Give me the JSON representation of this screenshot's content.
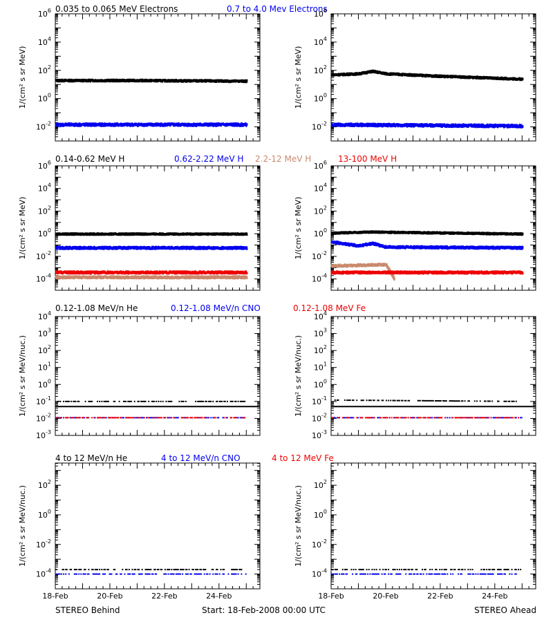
{
  "colors": {
    "black": "#000000",
    "blue": "#0000ee",
    "tan": "#c98a6e",
    "red": "#ee0000"
  },
  "row_titles": [
    [
      {
        "text": "0.035 to 0.065 MeV Electrons",
        "color": "black"
      },
      {
        "text": "0.7 to 4.0 Mev Electrons",
        "color": "blue"
      }
    ],
    [
      {
        "text": "0.14-0.62 MeV H",
        "color": "black"
      },
      {
        "text": "0.62-2.22 MeV H",
        "color": "blue"
      },
      {
        "text": "2.2-12 MeV H",
        "color": "tan"
      },
      {
        "text": "13-100 MeV H",
        "color": "red"
      }
    ],
    [
      {
        "text": "0.12-1.08 MeV/n He",
        "color": "black"
      },
      {
        "text": "0.12-1.08 MeV/n CNO",
        "color": "blue"
      },
      {
        "text": "0.12-1.08 MeV Fe",
        "color": "red"
      }
    ],
    [
      {
        "text": "4 to 12 MeV/n He",
        "color": "black"
      },
      {
        "text": "4 to 12 MeV/n CNO",
        "color": "blue"
      },
      {
        "text": "4 to 12 MeV Fe",
        "color": "red"
      }
    ]
  ],
  "x_tick_labels": [
    "18-Feb",
    "20-Feb",
    "22-Feb",
    "24-Feb"
  ],
  "footer": {
    "left": "STEREO Behind",
    "center": "Start: 18-Feb-2008 00:00 UTC",
    "right": "STEREO Ahead"
  },
  "chart_data": [
    {
      "type": "scatter",
      "row": 0,
      "side": "Behind",
      "log_y": true,
      "ylim_exp": [
        -3,
        6
      ],
      "ytick_exps": [
        -2,
        0,
        2,
        4,
        6
      ],
      "ylabel": "1/(cm² s sr MeV)",
      "xlim": [
        0,
        7.5
      ],
      "series": [
        {
          "color": "black",
          "flux": [
            [
              "18-Feb",
              20
            ],
            [
              "21-Feb",
              20
            ],
            [
              "25-Feb",
              18
            ]
          ]
        },
        {
          "color": "blue",
          "flux": [
            [
              "18-Feb",
              0.015
            ],
            [
              "25-Feb",
              0.015
            ]
          ]
        }
      ]
    },
    {
      "type": "scatter",
      "row": 0,
      "side": "Ahead",
      "log_y": true,
      "ylim_exp": [
        -3,
        6
      ],
      "ytick_exps": [
        -2,
        0,
        2,
        4,
        6
      ],
      "ylabel": "1/(cm² s sr MeV)",
      "xlim": [
        0,
        7.5
      ],
      "series": [
        {
          "color": "black",
          "flux": [
            [
              "18-Feb",
              50
            ],
            [
              "19-Feb",
              60
            ],
            [
              "19.5-Feb",
              90
            ],
            [
              "20-Feb",
              60
            ],
            [
              "22-Feb",
              40
            ],
            [
              "25-Feb",
              25
            ]
          ]
        },
        {
          "color": "blue",
          "flux": [
            [
              "18-Feb",
              0.015
            ],
            [
              "25-Feb",
              0.012
            ]
          ]
        }
      ]
    },
    {
      "type": "scatter",
      "row": 1,
      "side": "Behind",
      "log_y": true,
      "ylim_exp": [
        -5,
        6
      ],
      "ytick_exps": [
        -4,
        -2,
        0,
        2,
        4,
        6
      ],
      "ylabel": "1/(cm² s sr MeV)",
      "xlim": [
        0,
        7.5
      ],
      "series": [
        {
          "color": "black",
          "flux": [
            [
              "18-Feb",
              1
            ],
            [
              "25-Feb",
              1
            ]
          ]
        },
        {
          "color": "blue",
          "flux": [
            [
              "18-Feb",
              0.06
            ],
            [
              "25-Feb",
              0.06
            ]
          ]
        },
        {
          "color": "tan",
          "flux": [
            [
              "18-Feb",
              0.00015
            ],
            [
              "25-Feb",
              0.00015
            ]
          ]
        },
        {
          "color": "red",
          "flux": [
            [
              "18-Feb",
              0.0004
            ],
            [
              "25-Feb",
              0.0004
            ]
          ]
        }
      ]
    },
    {
      "type": "scatter",
      "row": 1,
      "side": "Ahead",
      "log_y": true,
      "ylim_exp": [
        -5,
        6
      ],
      "ytick_exps": [
        -4,
        -2,
        0,
        2,
        4,
        6
      ],
      "ylabel": "1/(cm² s sr MeV)",
      "xlim": [
        0,
        7.5
      ],
      "series": [
        {
          "color": "black",
          "flux": [
            [
              "18-Feb",
              1.2
            ],
            [
              "19.5-Feb",
              1.5
            ],
            [
              "25-Feb",
              1
            ]
          ]
        },
        {
          "color": "blue",
          "flux": [
            [
              "18-Feb",
              0.2
            ],
            [
              "19-Feb",
              0.09
            ],
            [
              "19.5-Feb",
              0.15
            ],
            [
              "20-Feb",
              0.07
            ],
            [
              "25-Feb",
              0.06
            ]
          ]
        },
        {
          "color": "tan",
          "flux": [
            [
              "18-Feb",
              0.0015
            ],
            [
              "20-Feb",
              0.002
            ],
            [
              "20.3-Feb",
              0.0001
            ]
          ]
        },
        {
          "color": "red",
          "flux": [
            [
              "18-Feb",
              0.0004
            ],
            [
              "25-Feb",
              0.0004
            ]
          ]
        }
      ]
    },
    {
      "type": "scatter",
      "row": 2,
      "side": "Behind",
      "log_y": true,
      "ylim_exp": [
        -3,
        4
      ],
      "ytick_exps": [
        -3,
        -2,
        -1,
        0,
        1,
        2,
        3,
        4
      ],
      "ylabel": "1/(cm² s sr MeV/nuc.)",
      "xlim": [
        0,
        7.5
      ],
      "series": [
        {
          "color": "black",
          "flux": [
            [
              "18-Feb",
              0.1
            ],
            [
              "25-Feb",
              0.1
            ]
          ]
        },
        {
          "color": "blue",
          "flux": [
            [
              "18-Feb",
              0.011
            ],
            [
              "25-Feb",
              0.011
            ]
          ]
        },
        {
          "color": "red",
          "flux": [
            [
              "18-Feb",
              0.011
            ],
            [
              "25-Feb",
              0.011
            ]
          ]
        }
      ]
    },
    {
      "type": "scatter",
      "row": 2,
      "side": "Ahead",
      "log_y": true,
      "ylim_exp": [
        -3,
        4
      ],
      "ytick_exps": [
        -3,
        -2,
        -1,
        0,
        1,
        2,
        3,
        4
      ],
      "ylabel": "1/(cm² s sr MeV/nuc.)",
      "xlim": [
        0,
        7.5
      ],
      "series": [
        {
          "color": "black",
          "flux": [
            [
              "18-Feb",
              0.12
            ],
            [
              "25-Feb",
              0.1
            ]
          ]
        },
        {
          "color": "blue",
          "flux": [
            [
              "18-Feb",
              0.011
            ],
            [
              "25-Feb",
              0.011
            ]
          ]
        },
        {
          "color": "red",
          "flux": [
            [
              "18-Feb",
              0.011
            ],
            [
              "25-Feb",
              0.011
            ]
          ]
        }
      ]
    },
    {
      "type": "scatter",
      "row": 3,
      "side": "Behind",
      "log_y": true,
      "ylim_exp": [
        -5,
        3.5
      ],
      "ytick_exps": [
        -4,
        -2,
        0,
        2
      ],
      "ylabel": "1/(cm² s sr MeV/nuc.)",
      "xlim": [
        0,
        7.5
      ],
      "series": [
        {
          "color": "black",
          "flux": [
            [
              "18-Feb",
              0.0002
            ],
            [
              "25-Feb",
              0.0002
            ]
          ]
        },
        {
          "color": "blue",
          "flux": [
            [
              "18-Feb",
              0.0001
            ],
            [
              "25-Feb",
              0.0001
            ]
          ]
        }
      ]
    },
    {
      "type": "scatter",
      "row": 3,
      "side": "Ahead",
      "log_y": true,
      "ylim_exp": [
        -5,
        3.5
      ],
      "ytick_exps": [
        -4,
        -2,
        0,
        2
      ],
      "ylabel": "1/(cm² s sr MeV/nuc.)",
      "xlim": [
        0,
        7.5
      ],
      "series": [
        {
          "color": "black",
          "flux": [
            [
              "18-Feb",
              0.0002
            ],
            [
              "25-Feb",
              0.0002
            ]
          ]
        },
        {
          "color": "blue",
          "flux": [
            [
              "18-Feb",
              0.0001
            ],
            [
              "25-Feb",
              0.0001
            ]
          ]
        }
      ]
    }
  ]
}
